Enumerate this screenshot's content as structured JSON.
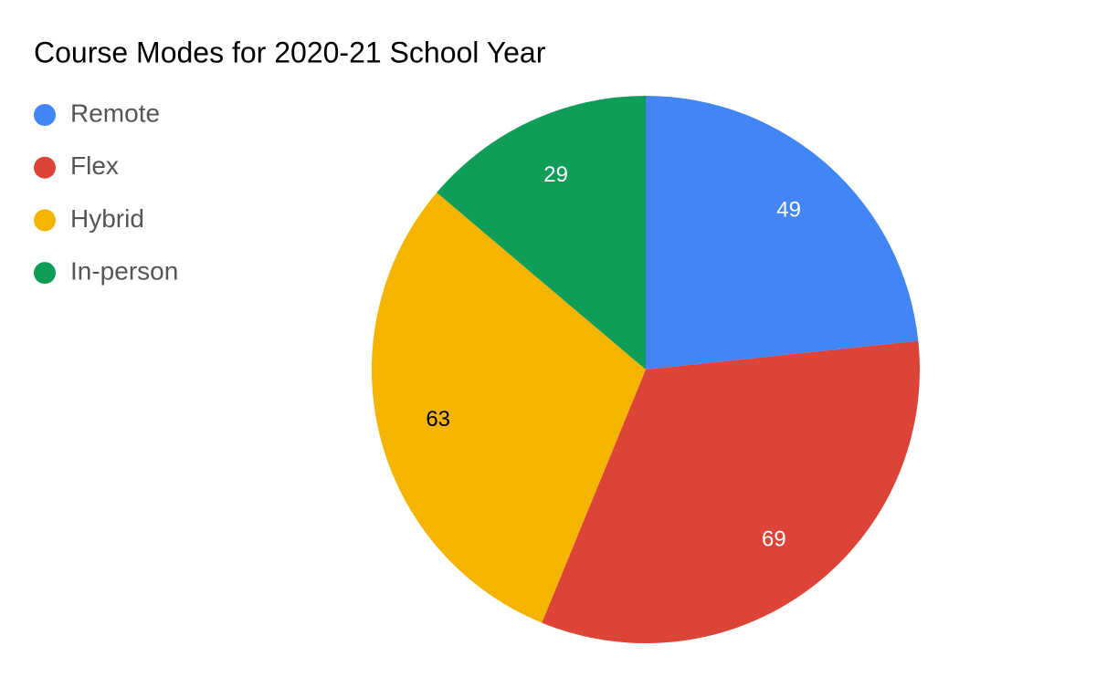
{
  "chart_data": {
    "type": "pie",
    "title": "Course Modes for 2020-21 School Year",
    "categories": [
      "Remote",
      "Flex",
      "Hybrid",
      "In-person"
    ],
    "values": [
      49,
      69,
      63,
      29
    ],
    "colors": [
      "#4285f4",
      "#db4437",
      "#f4b400",
      "#0f9d58"
    ],
    "legend": "left"
  }
}
